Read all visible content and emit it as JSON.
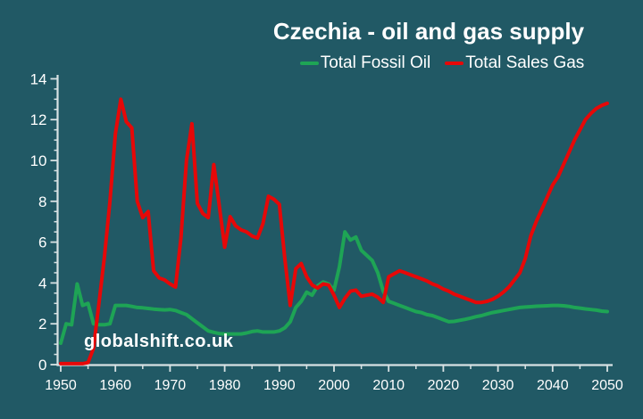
{
  "title": "Czechia - oil and gas supply",
  "watermark": "globalshift.co.uk",
  "colors": {
    "background": "#215965",
    "axis": "#d8e2e4",
    "text": "#ffffff",
    "oil": "#1ea455",
    "gas": "#e60808"
  },
  "legend": {
    "items": [
      {
        "label": "Total Fossil Oil",
        "color": "#1ea455"
      },
      {
        "label": "Total Sales Gas",
        "color": "#e60808"
      }
    ]
  },
  "chart_data": {
    "type": "line",
    "title": "Czechia - oil and gas supply",
    "xlabel": "",
    "ylabel": "",
    "xlim": [
      1950,
      2050
    ],
    "ylim": [
      0,
      14
    ],
    "grid": false,
    "legend_position": "top-center",
    "x_ticks": [
      1950,
      1960,
      1970,
      1980,
      1990,
      2000,
      2010,
      2020,
      2030,
      2040,
      2050
    ],
    "x_minor_ticks": [
      1955,
      1965,
      1975,
      1985,
      1995,
      2005,
      2015,
      2025,
      2035,
      2045
    ],
    "y_ticks": [
      0,
      2,
      4,
      6,
      8,
      10,
      12,
      14
    ],
    "y_minor_step": 0.5,
    "series": [
      {
        "name": "Total Fossil Oil",
        "color": "#1ea455",
        "points": [
          [
            1950,
            1.05
          ],
          [
            1951,
            2.0
          ],
          [
            1952,
            1.95
          ],
          [
            1953,
            3.95
          ],
          [
            1954,
            2.9
          ],
          [
            1955,
            3.0
          ],
          [
            1956,
            2.0
          ],
          [
            1957,
            1.95
          ],
          [
            1958,
            1.95
          ],
          [
            1959,
            2.0
          ],
          [
            1960,
            2.9
          ],
          [
            1961,
            2.9
          ],
          [
            1962,
            2.9
          ],
          [
            1963,
            2.85
          ],
          [
            1964,
            2.8
          ],
          [
            1965,
            2.78
          ],
          [
            1966,
            2.75
          ],
          [
            1967,
            2.72
          ],
          [
            1968,
            2.7
          ],
          [
            1969,
            2.68
          ],
          [
            1970,
            2.7
          ],
          [
            1971,
            2.65
          ],
          [
            1972,
            2.55
          ],
          [
            1973,
            2.45
          ],
          [
            1974,
            2.25
          ],
          [
            1975,
            2.05
          ],
          [
            1976,
            1.85
          ],
          [
            1977,
            1.65
          ],
          [
            1978,
            1.58
          ],
          [
            1979,
            1.52
          ],
          [
            1980,
            1.5
          ],
          [
            1981,
            1.5
          ],
          [
            1982,
            1.5
          ],
          [
            1983,
            1.5
          ],
          [
            1984,
            1.55
          ],
          [
            1985,
            1.62
          ],
          [
            1986,
            1.65
          ],
          [
            1987,
            1.6
          ],
          [
            1988,
            1.6
          ],
          [
            1989,
            1.6
          ],
          [
            1990,
            1.65
          ],
          [
            1991,
            1.8
          ],
          [
            1992,
            2.1
          ],
          [
            1993,
            2.8
          ],
          [
            1994,
            3.1
          ],
          [
            1995,
            3.55
          ],
          [
            1996,
            3.4
          ],
          [
            1997,
            3.85
          ],
          [
            1998,
            4.05
          ],
          [
            1999,
            3.95
          ],
          [
            2000,
            3.65
          ],
          [
            2001,
            4.8
          ],
          [
            2002,
            6.5
          ],
          [
            2003,
            6.1
          ],
          [
            2004,
            6.25
          ],
          [
            2005,
            5.6
          ],
          [
            2006,
            5.35
          ],
          [
            2007,
            5.1
          ],
          [
            2008,
            4.5
          ],
          [
            2009,
            3.6
          ],
          [
            2010,
            3.1
          ],
          [
            2011,
            3.0
          ],
          [
            2012,
            2.9
          ],
          [
            2013,
            2.8
          ],
          [
            2014,
            2.7
          ],
          [
            2015,
            2.6
          ],
          [
            2016,
            2.55
          ],
          [
            2017,
            2.45
          ],
          [
            2018,
            2.4
          ],
          [
            2019,
            2.3
          ],
          [
            2020,
            2.2
          ],
          [
            2021,
            2.1
          ],
          [
            2022,
            2.12
          ],
          [
            2023,
            2.17
          ],
          [
            2024,
            2.22
          ],
          [
            2025,
            2.28
          ],
          [
            2026,
            2.35
          ],
          [
            2027,
            2.4
          ],
          [
            2028,
            2.48
          ],
          [
            2029,
            2.55
          ],
          [
            2030,
            2.6
          ],
          [
            2031,
            2.65
          ],
          [
            2032,
            2.7
          ],
          [
            2033,
            2.75
          ],
          [
            2034,
            2.8
          ],
          [
            2035,
            2.82
          ],
          [
            2036,
            2.84
          ],
          [
            2037,
            2.86
          ],
          [
            2038,
            2.87
          ],
          [
            2039,
            2.88
          ],
          [
            2040,
            2.9
          ],
          [
            2041,
            2.9
          ],
          [
            2042,
            2.88
          ],
          [
            2043,
            2.85
          ],
          [
            2044,
            2.8
          ],
          [
            2045,
            2.77
          ],
          [
            2046,
            2.73
          ],
          [
            2047,
            2.7
          ],
          [
            2048,
            2.67
          ],
          [
            2049,
            2.62
          ],
          [
            2050,
            2.6
          ]
        ]
      },
      {
        "name": "Total Sales Gas",
        "color": "#e60808",
        "points": [
          [
            1950,
            0.05
          ],
          [
            1951,
            0.05
          ],
          [
            1952,
            0.05
          ],
          [
            1953,
            0.05
          ],
          [
            1954,
            0.05
          ],
          [
            1955,
            0.1
          ],
          [
            1956,
            0.8
          ],
          [
            1957,
            3.0
          ],
          [
            1958,
            5.3
          ],
          [
            1959,
            8.0
          ],
          [
            1960,
            11.3
          ],
          [
            1961,
            13.0
          ],
          [
            1962,
            11.9
          ],
          [
            1963,
            11.6
          ],
          [
            1964,
            8.0
          ],
          [
            1965,
            7.2
          ],
          [
            1966,
            7.5
          ],
          [
            1967,
            4.6
          ],
          [
            1968,
            4.25
          ],
          [
            1969,
            4.15
          ],
          [
            1970,
            3.95
          ],
          [
            1971,
            3.8
          ],
          [
            1972,
            6.2
          ],
          [
            1973,
            10.0
          ],
          [
            1974,
            11.8
          ],
          [
            1975,
            7.9
          ],
          [
            1976,
            7.4
          ],
          [
            1977,
            7.2
          ],
          [
            1978,
            9.8
          ],
          [
            1979,
            7.8
          ],
          [
            1980,
            5.75
          ],
          [
            1981,
            7.25
          ],
          [
            1982,
            6.8
          ],
          [
            1983,
            6.6
          ],
          [
            1984,
            6.5
          ],
          [
            1985,
            6.3
          ],
          [
            1986,
            6.2
          ],
          [
            1987,
            6.9
          ],
          [
            1988,
            8.25
          ],
          [
            1989,
            8.1
          ],
          [
            1990,
            7.85
          ],
          [
            1991,
            5.2
          ],
          [
            1992,
            2.9
          ],
          [
            1993,
            4.7
          ],
          [
            1994,
            4.95
          ],
          [
            1995,
            4.3
          ],
          [
            1996,
            3.9
          ],
          [
            1997,
            3.75
          ],
          [
            1998,
            3.95
          ],
          [
            1999,
            3.9
          ],
          [
            2000,
            3.4
          ],
          [
            2001,
            2.8
          ],
          [
            2002,
            3.25
          ],
          [
            2003,
            3.6
          ],
          [
            2004,
            3.65
          ],
          [
            2005,
            3.35
          ],
          [
            2006,
            3.4
          ],
          [
            2007,
            3.45
          ],
          [
            2008,
            3.3
          ],
          [
            2009,
            3.05
          ],
          [
            2010,
            4.3
          ],
          [
            2011,
            4.45
          ],
          [
            2012,
            4.6
          ],
          [
            2013,
            4.5
          ],
          [
            2014,
            4.4
          ],
          [
            2015,
            4.3
          ],
          [
            2016,
            4.2
          ],
          [
            2017,
            4.1
          ],
          [
            2018,
            3.95
          ],
          [
            2019,
            3.85
          ],
          [
            2020,
            3.7
          ],
          [
            2021,
            3.6
          ],
          [
            2022,
            3.45
          ],
          [
            2023,
            3.35
          ],
          [
            2024,
            3.25
          ],
          [
            2025,
            3.15
          ],
          [
            2026,
            3.05
          ],
          [
            2027,
            3.05
          ],
          [
            2028,
            3.1
          ],
          [
            2029,
            3.2
          ],
          [
            2030,
            3.35
          ],
          [
            2031,
            3.55
          ],
          [
            2032,
            3.8
          ],
          [
            2033,
            4.15
          ],
          [
            2034,
            4.5
          ],
          [
            2035,
            5.2
          ],
          [
            2036,
            6.3
          ],
          [
            2037,
            7.0
          ],
          [
            2038,
            7.6
          ],
          [
            2039,
            8.2
          ],
          [
            2040,
            8.8
          ],
          [
            2041,
            9.2
          ],
          [
            2042,
            9.8
          ],
          [
            2043,
            10.4
          ],
          [
            2044,
            11.0
          ],
          [
            2045,
            11.5
          ],
          [
            2046,
            12.0
          ],
          [
            2047,
            12.3
          ],
          [
            2048,
            12.55
          ],
          [
            2049,
            12.7
          ],
          [
            2050,
            12.8
          ]
        ]
      }
    ]
  }
}
